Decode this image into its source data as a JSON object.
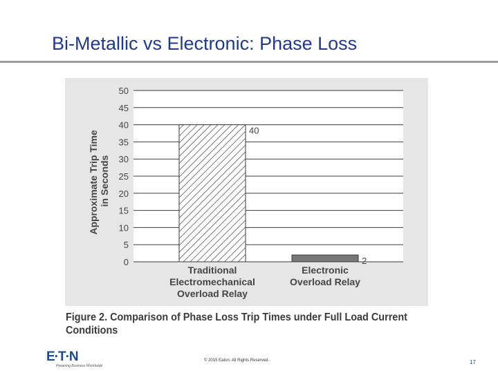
{
  "slide": {
    "title": "Bi-Metallic vs Electronic: Phase Loss",
    "caption": "Figure 2. Comparison of Phase Loss Trip Times under Full Load Current Conditions"
  },
  "chart_data": {
    "type": "bar",
    "ylabel_line1": "Approximate Trip Time",
    "ylabel_line2": "in Seconds",
    "categories": [
      [
        "Traditional",
        "Electromechanical",
        "Overload Relay"
      ],
      [
        "Electronic",
        "Overload Relay"
      ]
    ],
    "values": [
      40,
      2
    ],
    "value_labels": [
      "40",
      "2"
    ],
    "bar_styles": [
      "hatched",
      "solid-gray"
    ],
    "ylim": [
      0,
      50
    ],
    "yticks": [
      0,
      5,
      10,
      15,
      20,
      25,
      30,
      35,
      40,
      45,
      50
    ],
    "grid": true
  },
  "footer": {
    "logo_text": "E·T·N",
    "tagline": "Powering Business Worldwide",
    "copyright": "© 2015 Eaton. All Rights Reserved.",
    "page_number": "17"
  },
  "colors": {
    "title": "#1f3a8a",
    "figure_bg": "#e6e6e6",
    "hatch": "#555555",
    "electronic_bar": "#777777",
    "brand": "#1a4a8c"
  }
}
